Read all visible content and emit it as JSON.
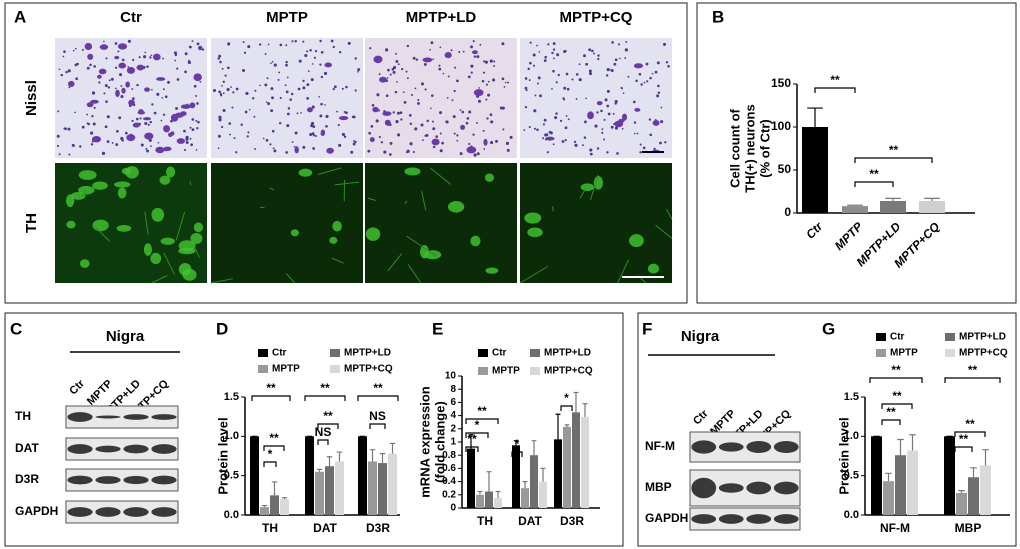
{
  "panel_a": {
    "letter": "A",
    "columns": [
      "Ctr",
      "MPTP",
      "MPTP+LD",
      "MPTP+CQ"
    ],
    "rows": [
      "Nissl",
      "TH"
    ]
  },
  "panel_c": {
    "letter": "C",
    "title": "Nigra",
    "lanes": [
      "Ctr",
      "MPTP",
      "MPTP+LD",
      "MPTP+CQ"
    ],
    "rows": [
      "TH",
      "DAT",
      "D3R",
      "GAPDH"
    ]
  },
  "panel_f": {
    "letter": "F",
    "title": "Nigra",
    "lanes": [
      "Ctr",
      "MPTP",
      "MPTP+LD",
      "MPTP+CQ"
    ],
    "rows": [
      "NF-M",
      "MBP",
      "GAPDH"
    ]
  },
  "chart_data": [
    {
      "type": "bar",
      "panel": "B",
      "ylabel": [
        "Cell count of",
        "TH(+) neurons",
        "(% of Ctr)"
      ],
      "categories": [
        "Ctr",
        "MPTP",
        "MPTP+LD",
        "MPTP+CQ"
      ],
      "values": [
        100,
        8,
        14,
        14
      ],
      "errors": [
        22,
        1,
        3,
        3
      ],
      "colors": [
        "#000000",
        "#8c8c8c",
        "#7a7a7a",
        "#cfcfcf"
      ],
      "ylim": [
        0,
        150
      ],
      "yticks": [
        0,
        50,
        100,
        150
      ],
      "annotations": [
        "**",
        "**",
        "**"
      ]
    },
    {
      "type": "bar",
      "panel": "D",
      "ylabel": [
        "Protein level"
      ],
      "categories": [
        "TH",
        "DAT",
        "D3R"
      ],
      "series": [
        {
          "name": "Ctr",
          "color": "#000000",
          "values": [
            1.0,
            1.0,
            1.0
          ],
          "errors": [
            0,
            0,
            0
          ]
        },
        {
          "name": "MPTP",
          "color": "#999999",
          "values": [
            0.1,
            0.55,
            0.68
          ],
          "errors": [
            0.02,
            0.03,
            0.15
          ]
        },
        {
          "name": "MPTP+LD",
          "color": "#6e6e6e",
          "values": [
            0.25,
            0.62,
            0.66
          ],
          "errors": [
            0.17,
            0.12,
            0.12
          ]
        },
        {
          "name": "MPTP+CQ",
          "color": "#d9d9d9",
          "values": [
            0.2,
            0.68,
            0.78
          ],
          "errors": [
            0.02,
            0.12,
            0.13
          ]
        }
      ],
      "ylim": [
        0,
        1.5
      ],
      "yticks": [
        {
          "value": 0,
          "label": "0.0"
        },
        {
          "value": 0.5,
          "label": "0.5"
        },
        {
          "value": 1,
          "label": "1.0"
        },
        {
          "value": 1.5,
          "label": "1.5"
        }
      ],
      "annotations": [
        "**",
        "**",
        "*",
        "**",
        "**",
        "NS",
        "**",
        "NS"
      ]
    },
    {
      "type": "bar",
      "panel": "E",
      "ylabel": [
        "mRNA expression",
        "(fold change)"
      ],
      "categories": [
        "TH",
        "DAT",
        "D3R"
      ],
      "y_scale": "broken",
      "series": [
        {
          "name": "Ctr",
          "color": "#000000",
          "values": [
            0.9,
            0.95,
            1.2
          ],
          "errors": [
            0.65,
            0.15,
            3
          ]
        },
        {
          "name": "MPTP",
          "color": "#999999",
          "values": [
            0.2,
            0.3,
            2.3
          ],
          "errors": [
            0.05,
            0.1,
            0.3
          ]
        },
        {
          "name": "MPTP+LD",
          "color": "#6e6e6e",
          "values": [
            0.25,
            0.8,
            4.5
          ],
          "errors": [
            0.3,
            0.3,
            3
          ]
        },
        {
          "name": "MPTP+CQ",
          "color": "#d9d9d9",
          "values": [
            0.15,
            0.4,
            3.8
          ],
          "errors": [
            0.1,
            0.2,
            2
          ]
        }
      ],
      "ylim": [
        0,
        10
      ],
      "yticks": [
        0,
        0.2,
        0.4,
        0.6,
        0.8,
        1,
        2,
        4,
        6,
        8,
        10
      ],
      "annotations": [
        "**",
        "*",
        "**",
        "*",
        "*"
      ]
    },
    {
      "type": "bar",
      "panel": "G",
      "ylabel": [
        "Protein level"
      ],
      "categories": [
        "NF-M",
        "MBP"
      ],
      "series": [
        {
          "name": "Ctr",
          "color": "#000000",
          "values": [
            1.0,
            1.0
          ],
          "errors": [
            0,
            0
          ]
        },
        {
          "name": "MPTP",
          "color": "#999999",
          "values": [
            0.43,
            0.28
          ],
          "errors": [
            0.1,
            0.03
          ]
        },
        {
          "name": "MPTP+LD",
          "color": "#6e6e6e",
          "values": [
            0.76,
            0.48
          ],
          "errors": [
            0.2,
            0.12
          ]
        },
        {
          "name": "MPTP+CQ",
          "color": "#d9d9d9",
          "values": [
            0.82,
            0.63
          ],
          "errors": [
            0.2,
            0.2
          ]
        }
      ],
      "ylim": [
        0,
        1.5
      ],
      "yticks": [
        {
          "value": 0,
          "label": "0.0"
        },
        {
          "value": 0.5,
          "label": "0.5"
        },
        {
          "value": 1,
          "label": "1.0"
        },
        {
          "value": 1.5,
          "label": "1.5"
        }
      ],
      "annotations": [
        "**",
        "**",
        "**",
        "**",
        "**",
        "**"
      ]
    }
  ]
}
